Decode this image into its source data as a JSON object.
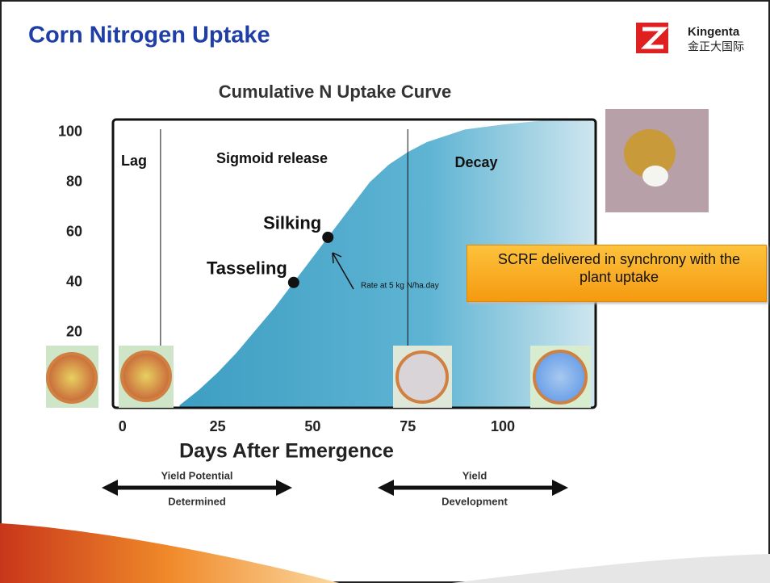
{
  "slide": {
    "title": "Corn Nitrogen Uptake",
    "logo_name": "Kingenta",
    "logo_subname": "金正大国际",
    "callout": "SCRF delivered in synchrony with the plant uptake",
    "ranges": [
      {
        "top": "Yield Potential",
        "bottom": "Determined"
      },
      {
        "top": "Yield",
        "bottom": "Development"
      }
    ]
  },
  "chart_data": {
    "type": "area",
    "title": "Cumulative N Uptake Curve",
    "x_label": "Days After Emergence",
    "x": [
      15,
      20,
      25,
      30,
      35,
      40,
      45,
      50,
      54,
      60,
      65,
      70,
      75,
      80,
      90,
      100,
      110,
      124.4
    ],
    "series": [
      {
        "color": "#4aa6c8",
        "values": [
          -9,
          -3,
          4,
          12,
          21,
          30,
          40,
          50,
          58,
          70,
          80,
          87,
          92,
          96,
          101,
          103,
          104.5,
          105
        ]
      }
    ],
    "points": [
      {
        "name": "Tasseling",
        "x": 45,
        "y": 40
      },
      {
        "name": "Silking",
        "x": 54,
        "y": 58
      }
    ],
    "annotation": "Rate at 5 kg N/ha.day",
    "phases": [
      {
        "name": "Lag"
      },
      {
        "name": "Sigmoid release"
      },
      {
        "name": "Decay"
      }
    ],
    "phase_boundaries": [
      10,
      75
    ],
    "xlim": [
      -2.5,
      124.4
    ],
    "ylim": [
      -10,
      105
    ],
    "xticks": [
      0,
      25,
      50,
      75,
      100
    ],
    "yticks": [
      20,
      40,
      60,
      80,
      100
    ]
  }
}
